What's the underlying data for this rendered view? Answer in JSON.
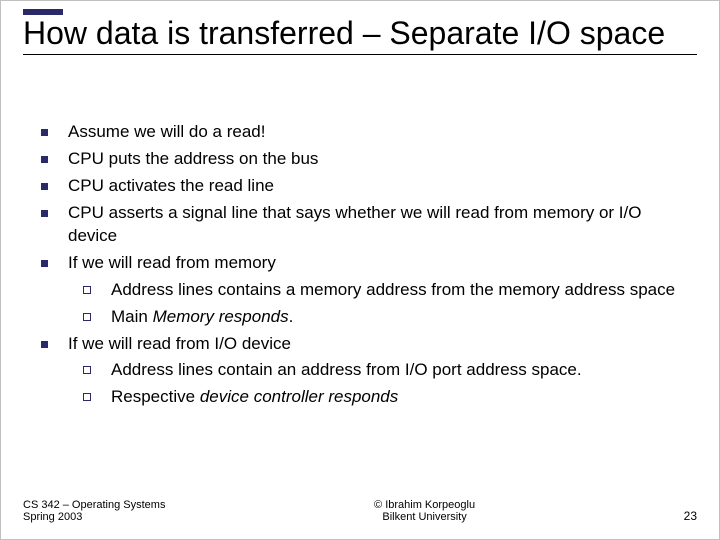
{
  "accent_color": "#2a2a6a",
  "slide": {
    "title": "How data is transferred – Separate I/O space",
    "bullets": [
      {
        "level": 1,
        "text": "Assume we will do a read!"
      },
      {
        "level": 1,
        "text": "CPU puts the address on the bus"
      },
      {
        "level": 1,
        "text": "CPU activates the read line"
      },
      {
        "level": 1,
        "text": "CPU asserts a signal line that says whether we will read from memory or I/O device"
      },
      {
        "level": 1,
        "text": "If we will read from memory"
      },
      {
        "level": 2,
        "text": "Address lines contains a memory address from the memory address space"
      },
      {
        "level": 2,
        "prefix": "Main ",
        "italic": "Memory responds",
        "suffix": "."
      },
      {
        "level": 1,
        "text": "If we will read from I/O device"
      },
      {
        "level": 2,
        "text": "Address lines contain an address from I/O port address space."
      },
      {
        "level": 2,
        "prefix": "Respective ",
        "italic": "device controller responds",
        "suffix": ""
      }
    ],
    "footer": {
      "left_line1": "CS 342 – Operating Systems",
      "left_line2": "Spring 2003",
      "center_line1": "© Ibrahim Korpeoglu",
      "center_line2": "Bilkent University",
      "page": "23"
    }
  }
}
